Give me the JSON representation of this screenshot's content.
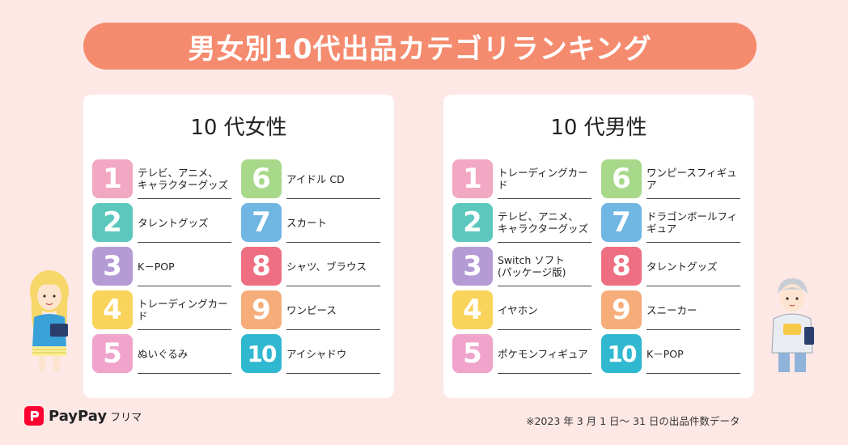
{
  "title": "男女別10代出品カテゴリランキング",
  "colors": {
    "banner": "#f58b6e",
    "rank1": "#f2a7c3",
    "rank2": "#5cc8bd",
    "rank3": "#b59bd6",
    "rank4": "#f9d35a",
    "rank5": "#f0a4cc",
    "rank6": "#a8d98a",
    "rank7": "#6fb6e3",
    "rank8": "#ee6f82",
    "rank9": "#f6ad7a",
    "rank10": "#2fb8cf"
  },
  "female": {
    "heading": "10 代女性",
    "items": [
      {
        "rank": "1",
        "label": "テレビ、アニメ、\nキャラクターグッズ"
      },
      {
        "rank": "2",
        "label": "タレントグッズ"
      },
      {
        "rank": "3",
        "label": "K－POP"
      },
      {
        "rank": "4",
        "label": "トレーディングカード"
      },
      {
        "rank": "5",
        "label": "ぬいぐるみ"
      },
      {
        "rank": "6",
        "label": "アイドル CD"
      },
      {
        "rank": "7",
        "label": "スカート"
      },
      {
        "rank": "8",
        "label": "シャツ、ブラウス"
      },
      {
        "rank": "9",
        "label": "ワンピース"
      },
      {
        "rank": "10",
        "label": "アイシャドウ"
      }
    ]
  },
  "male": {
    "heading": "10 代男性",
    "items": [
      {
        "rank": "1",
        "label": "トレーディングカード"
      },
      {
        "rank": "2",
        "label": "テレビ、アニメ、\nキャラクターグッズ"
      },
      {
        "rank": "3",
        "label": "Switch ソフト\n(パッケージ版)"
      },
      {
        "rank": "4",
        "label": "イヤホン"
      },
      {
        "rank": "5",
        "label": "ポケモンフィギュア"
      },
      {
        "rank": "6",
        "label": "ワンピースフィギュア"
      },
      {
        "rank": "7",
        "label": "ドラゴンボールフィギュア"
      },
      {
        "rank": "8",
        "label": "タレントグッズ"
      },
      {
        "rank": "9",
        "label": "スニーカー"
      },
      {
        "rank": "10",
        "label": "K－POP"
      }
    ]
  },
  "logo": {
    "brand": "PayPay",
    "sub": "フリマ"
  },
  "footnote": "※2023 年 3 月 1 日～ 31 日の出品件数データ",
  "icons": {
    "female_character": "girl-illustration-icon",
    "male_character": "boy-illustration-icon",
    "logo_mark": "paypay-logo-icon"
  }
}
